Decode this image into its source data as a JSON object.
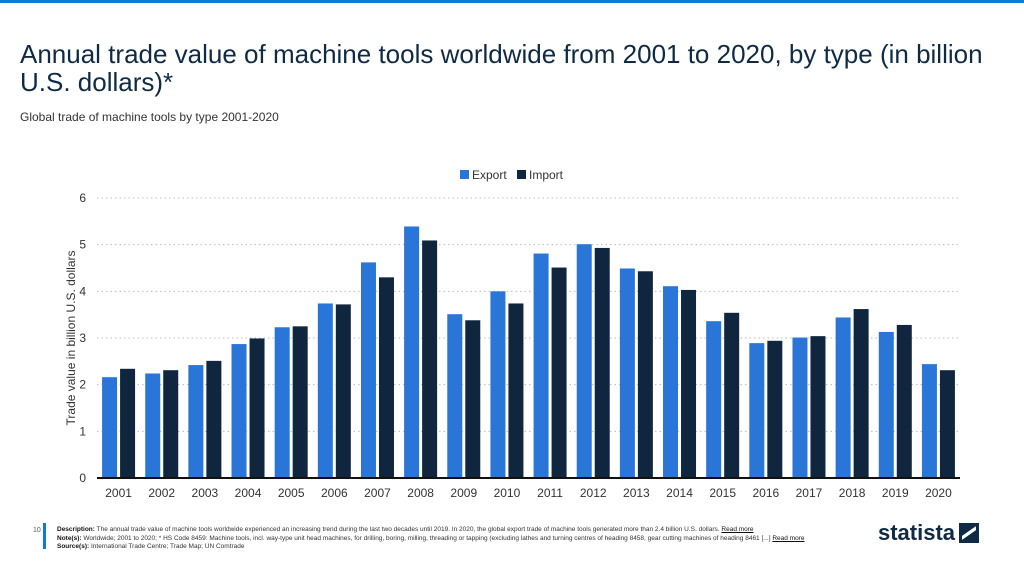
{
  "header": {
    "title": "Annual trade value of machine tools worldwide from 2001 to 2020, by type (in billion U.S. dollars)*",
    "subtitle": "Global trade of machine tools by type 2001-2020"
  },
  "colors": {
    "export": "#2a75d8",
    "import": "#10263f",
    "accent": "#0c7cd5"
  },
  "chart_data": {
    "type": "bar",
    "title": "Annual trade value of machine tools worldwide from 2001 to 2020, by type (in billion U.S. dollars)*",
    "xlabel": "",
    "ylabel": "Trade value in billion U.S. dollars",
    "ylim": [
      0,
      6
    ],
    "yticks": [
      "0",
      "1",
      "2",
      "3",
      "4",
      "5",
      "6"
    ],
    "grid": true,
    "legend_position": "top-center",
    "categories": [
      "2001",
      "2002",
      "2003",
      "2004",
      "2005",
      "2006",
      "2007",
      "2008",
      "2009",
      "2010",
      "2011",
      "2012",
      "2013",
      "2014",
      "2015",
      "2016",
      "2017",
      "2018",
      "2019",
      "2020"
    ],
    "series": [
      {
        "name": "Export",
        "values": [
          2.16,
          2.24,
          2.42,
          2.87,
          3.23,
          3.74,
          4.62,
          5.39,
          3.51,
          4.0,
          4.81,
          5.01,
          4.49,
          4.11,
          3.36,
          2.89,
          3.01,
          3.44,
          3.13,
          2.44
        ]
      },
      {
        "name": "Import",
        "values": [
          2.34,
          2.31,
          2.51,
          2.99,
          3.25,
          3.72,
          4.3,
          5.09,
          3.38,
          3.74,
          4.51,
          4.93,
          4.43,
          4.03,
          3.54,
          2.94,
          3.04,
          3.62,
          3.28,
          2.31
        ]
      }
    ]
  },
  "footer": {
    "page_number": "10",
    "description_label": "Description:",
    "description": "The annual trade value of machine tools worldwide experienced an increasing trend during the last two decades until 2019. In 2020, the global export trade of machine tools generated more than 2.4 billion U.S. dollars.",
    "notes_label": "Note(s):",
    "notes": "Worldwide; 2001 to 2020; * HS Code 8459: Machine tools, incl. way-type unit head machines, for drilling, boring, milling, threading or tapping (excluding lathes and turning centres of heading 8458, gear cutting machines of heading 8461 [...]",
    "sources_label": "Source(s):",
    "sources": "International Trade Centre; Trade Map; UN Comtrade",
    "read_more": "Read more",
    "logo": "statista"
  }
}
